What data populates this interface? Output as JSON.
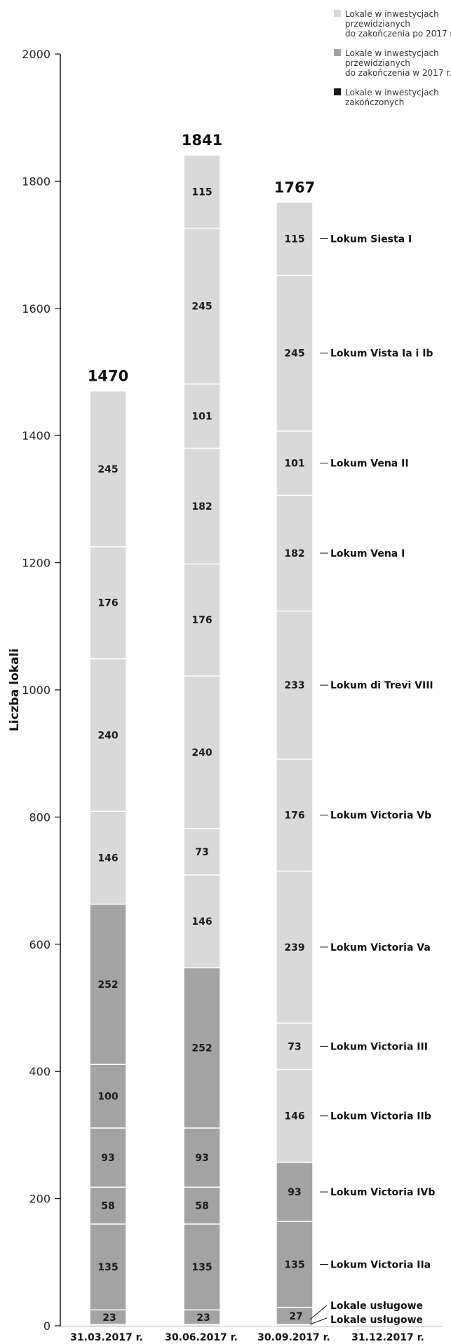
{
  "colors": {
    "future": "#d9d9d9",
    "current_year": "#a3a3a3",
    "completed": "#1a1a1a",
    "axis": "#111111"
  },
  "legend": [
    {
      "lines": [
        "Lokale w inwestycjach",
        "przewidzianych",
        "do zakończenia po 2017 r."
      ],
      "color_key": "future"
    },
    {
      "lines": [
        "Lokale w inwestycjach",
        "przewidzianych",
        "do zakończenia w 2017 r."
      ],
      "color_key": "current_year"
    },
    {
      "lines": [
        "Lokale w inwestycjach",
        "zakończonych"
      ],
      "color_key": "completed"
    }
  ],
  "chart_data": {
    "type": "bar",
    "stacked": true,
    "ylabel": "Liczba lokali",
    "xlabel": "",
    "ylim": [
      0,
      2000
    ],
    "yticks": [
      0,
      200,
      400,
      600,
      800,
      1000,
      1200,
      1400,
      1600,
      1800,
      2000
    ],
    "categories": [
      "31.03.2017 r.",
      "30.06.2017 r.",
      "30.09.2017 r.",
      "31.12.2017 r."
    ],
    "totals": [
      1470,
      1841,
      1767,
      null
    ],
    "stacks": [
      [
        {
          "value": 2,
          "category": "current_year"
        },
        {
          "value": 23,
          "category": "current_year"
        },
        {
          "value": 135,
          "category": "current_year"
        },
        {
          "value": 58,
          "category": "current_year"
        },
        {
          "value": 93,
          "category": "current_year"
        },
        {
          "value": 100,
          "category": "current_year"
        },
        {
          "value": 252,
          "category": "current_year"
        },
        {
          "value": 146,
          "category": "future"
        },
        {
          "value": 240,
          "category": "future"
        },
        {
          "value": 176,
          "category": "future"
        },
        {
          "value": 245,
          "category": "future"
        }
      ],
      [
        {
          "value": 2,
          "category": "current_year"
        },
        {
          "value": 23,
          "category": "current_year"
        },
        {
          "value": 135,
          "category": "current_year"
        },
        {
          "value": 58,
          "category": "current_year"
        },
        {
          "value": 93,
          "category": "current_year"
        },
        {
          "value": 252,
          "category": "current_year"
        },
        {
          "value": 146,
          "category": "future"
        },
        {
          "value": 73,
          "category": "future"
        },
        {
          "value": 240,
          "category": "future"
        },
        {
          "value": 176,
          "category": "future"
        },
        {
          "value": 182,
          "category": "future"
        },
        {
          "value": 101,
          "category": "future"
        },
        {
          "value": 245,
          "category": "future"
        },
        {
          "value": 115,
          "category": "future"
        }
      ],
      [
        {
          "value": 2,
          "category": "current_year",
          "label": "Lokale usługowe"
        },
        {
          "value": 27,
          "category": "current_year",
          "label": "Lokale usługowe"
        },
        {
          "value": 135,
          "category": "current_year",
          "label": "Lokum Victoria IIa"
        },
        {
          "value": 93,
          "category": "current_year",
          "label": "Lokum Victoria IVb"
        },
        {
          "value": 146,
          "category": "future",
          "label": "Lokum Victoria IIb"
        },
        {
          "value": 73,
          "category": "future",
          "label": "Lokum Victoria III"
        },
        {
          "value": 239,
          "category": "future",
          "label": "Lokum Victoria Va"
        },
        {
          "value": 176,
          "category": "future",
          "label": "Lokum Victoria Vb"
        },
        {
          "value": 233,
          "category": "future",
          "label": "Lokum di Trevi VIII"
        },
        {
          "value": 182,
          "category": "future",
          "label": "Lokum Vena I"
        },
        {
          "value": 101,
          "category": "future",
          "label": "Lokum Vena II"
        },
        {
          "value": 245,
          "category": "future",
          "label": "Lokum Vista Ia i Ib"
        },
        {
          "value": 115,
          "category": "future",
          "label": "Lokum Siesta I"
        }
      ],
      []
    ]
  }
}
